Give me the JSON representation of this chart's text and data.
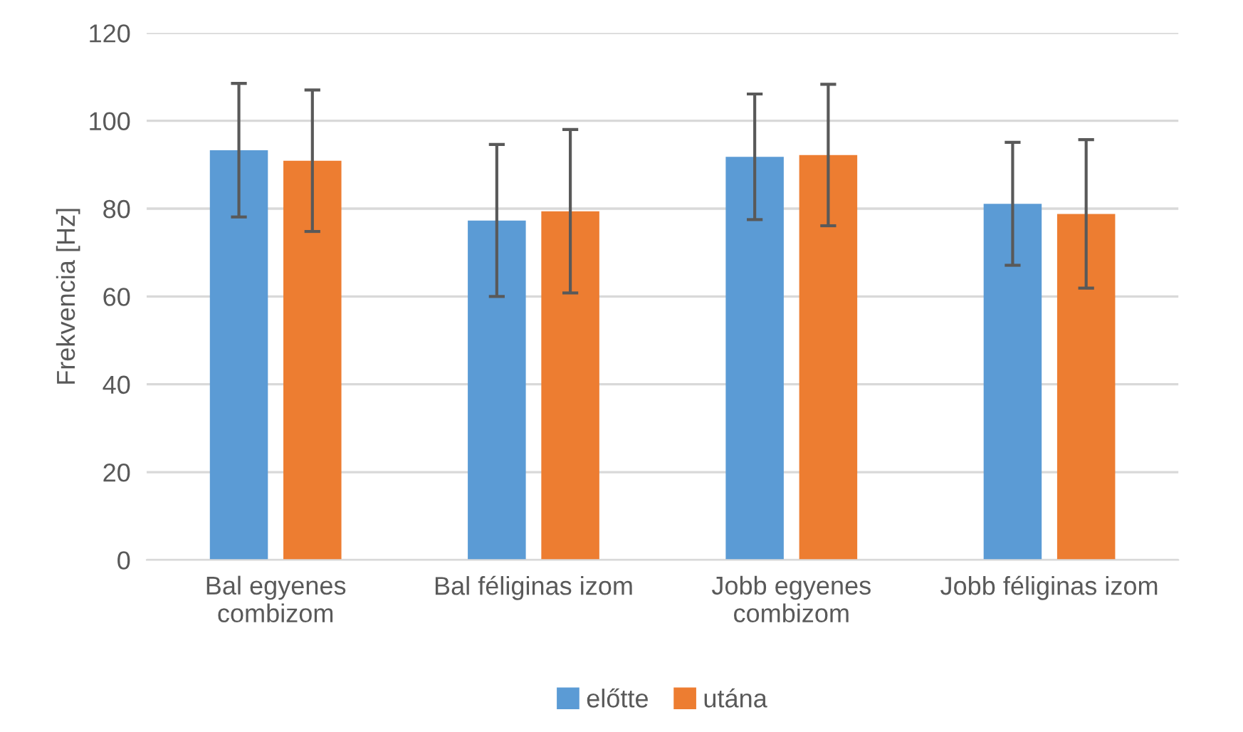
{
  "chart_data": {
    "type": "bar",
    "ylabel": "Frekvencia [Hz]",
    "categories": [
      "Bal egyenes\ncombizom",
      "Bal féliginas izom",
      "Jobb egyenes\ncombizom",
      "Jobb féliginas izom"
    ],
    "series": [
      {
        "name": "előtte",
        "color": "#5b9bd5",
        "values": [
          93.3,
          77.3,
          91.8,
          81.1
        ],
        "errors": [
          15.2,
          17.3,
          14.3,
          14.0
        ]
      },
      {
        "name": "utána",
        "color": "#ed7d31",
        "values": [
          90.9,
          79.4,
          92.2,
          78.8
        ],
        "errors": [
          16.1,
          18.6,
          16.1,
          16.9
        ]
      }
    ],
    "ylim": [
      0,
      120
    ],
    "yticks": [
      0,
      20,
      40,
      60,
      80,
      100,
      120
    ],
    "grid": "y",
    "legend": "bottom"
  }
}
